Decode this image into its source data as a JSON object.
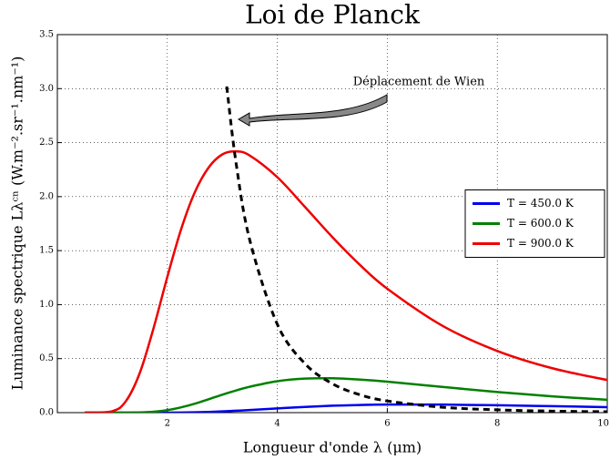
{
  "chart_data": {
    "type": "line",
    "title": "Loi de Planck",
    "xlabel": "Longueur d'onde λ (μm)",
    "ylabel": "Luminance spectrique Lλᶜⁿ (W.m⁻².sr⁻¹.nm⁻¹)",
    "annotation": "Déplacement de Wien",
    "xlim": [
      0,
      10
    ],
    "xticks": [
      2,
      4,
      6,
      8,
      10
    ],
    "ylim": [
      0,
      3.5
    ],
    "yticks": [
      {
        "value": 0,
        "label": "0.0"
      },
      0.5,
      {
        "value": 1,
        "label": "1.0"
      },
      1.5,
      {
        "value": 2,
        "label": "2.0"
      },
      2.5,
      {
        "value": 3,
        "label": "3.0"
      },
      3.5
    ],
    "grid": true,
    "legend": "center right",
    "series": [
      {
        "name": "T = 450.0 K",
        "color": "#0000ee",
        "x": [
          0.5,
          1,
          1.25,
          1.5,
          1.75,
          2,
          2.25,
          2.5,
          2.75,
          3,
          3.25,
          3.5,
          4,
          4.5,
          5,
          5.5,
          6,
          7,
          8,
          9,
          10
        ],
        "values": [
          0,
          0,
          0,
          0,
          0,
          0.0004,
          0.0014,
          0.0034,
          0.0068,
          0.0115,
          0.0175,
          0.0245,
          0.039,
          0.053,
          0.064,
          0.071,
          0.0747,
          0.0745,
          0.068,
          0.0596,
          0.051
        ]
      },
      {
        "name": "T = 600.0 K",
        "color": "#008000",
        "x": [
          0.5,
          1,
          1.25,
          1.5,
          1.75,
          2,
          2.25,
          2.5,
          2.75,
          3,
          3.25,
          3.5,
          4,
          4.5,
          5,
          5.5,
          6,
          7,
          8,
          9,
          10
        ],
        "values": [
          0,
          0,
          0.0002,
          0.0018,
          0.0082,
          0.023,
          0.049,
          0.083,
          0.124,
          0.166,
          0.205,
          0.24,
          0.291,
          0.315,
          0.318,
          0.306,
          0.287,
          0.238,
          0.191,
          0.151,
          0.119
        ]
      },
      {
        "name": "T = 900.0 K",
        "color": "#ee0000",
        "x": [
          0.5,
          1,
          1.25,
          1.5,
          1.75,
          2,
          2.25,
          2.5,
          2.75,
          3,
          3.25,
          3.5,
          4,
          4.5,
          5,
          5.5,
          6,
          7,
          8,
          9,
          10
        ],
        "values": [
          0,
          0.0134,
          0.109,
          0.369,
          0.783,
          1.257,
          1.697,
          2.041,
          2.269,
          2.391,
          2.419,
          2.38,
          2.18,
          1.906,
          1.626,
          1.369,
          1.147,
          0.805,
          0.571,
          0.411,
          0.302
        ]
      },
      {
        "color": "#000000",
        "dashed": true,
        "x": [
          3.08,
          3.25,
          3.5,
          4,
          4.5,
          5,
          5.5,
          6,
          7,
          8,
          9,
          10
        ],
        "values": [
          3.02,
          2.31,
          1.595,
          0.818,
          0.455,
          0.268,
          0.166,
          0.108,
          0.05,
          0.026,
          0.014,
          0.0083
        ]
      }
    ]
  }
}
